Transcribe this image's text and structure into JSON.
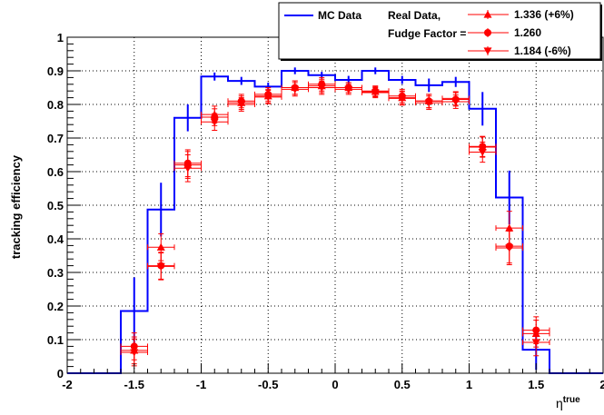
{
  "chart_data": {
    "type": "step-line-with-error-markers",
    "title": "",
    "xlabel_base": "η",
    "xlabel_sup": "true",
    "ylabel": "tracking efficiency",
    "xlim": [
      -2,
      2
    ],
    "ylim": [
      0,
      1
    ],
    "grid": true,
    "x_ticks": [
      "-2",
      "-1.5",
      "-1",
      "-0.5",
      "0",
      "0.5",
      "1",
      "1.5",
      "2"
    ],
    "y_ticks": [
      "0",
      "0.1",
      "0.2",
      "0.3",
      "0.4",
      "0.5",
      "0.6",
      "0.7",
      "0.8",
      "0.9",
      "1"
    ],
    "legend": {
      "position": "top-right",
      "mc_label": "MC Data",
      "real_label": "Real Data,",
      "fudge_label": "Fudge Factor =",
      "up_label": "1.336 (+6%)",
      "nominal_label": "1.260",
      "down_label": "1.184 (-6%)"
    },
    "colors": {
      "mc": "#0000ff",
      "real": "#ff0000"
    },
    "mc_data": {
      "name": "MC Data",
      "bin_edges": [
        -2.0,
        -1.6,
        -1.4,
        -1.2,
        -1.0,
        -0.8,
        -0.6,
        -0.4,
        -0.2,
        0.0,
        0.2,
        0.4,
        0.6,
        0.8,
        1.0,
        1.2,
        1.4,
        1.6,
        2.0
      ],
      "values": [
        0.0,
        0.185,
        0.487,
        0.76,
        0.883,
        0.87,
        0.853,
        0.9,
        0.887,
        0.873,
        0.9,
        0.873,
        0.857,
        0.867,
        0.787,
        0.523,
        0.07,
        0.0
      ],
      "errors": [
        0.0,
        0.1,
        0.08,
        0.04,
        0.012,
        0.012,
        0.012,
        0.01,
        0.01,
        0.012,
        0.01,
        0.012,
        0.02,
        0.015,
        0.05,
        0.08,
        0.06,
        0.0
      ],
      "error_x": [
        -1.8,
        -1.5,
        -1.3,
        -1.1,
        -0.9,
        -0.7,
        -0.5,
        -0.3,
        -0.1,
        0.1,
        0.3,
        0.5,
        0.7,
        0.9,
        1.1,
        1.3,
        1.5,
        1.8
      ]
    },
    "real_data": {
      "x": [
        -1.5,
        -1.3,
        -1.1,
        -0.9,
        -0.7,
        -0.5,
        -0.3,
        -0.1,
        0.1,
        0.3,
        0.5,
        0.7,
        0.9,
        1.1,
        1.3,
        1.5
      ],
      "x_err": 0.1,
      "nominal": [
        0.08,
        0.32,
        0.625,
        0.762,
        0.81,
        0.83,
        0.85,
        0.86,
        0.85,
        0.84,
        0.825,
        0.81,
        0.815,
        0.675,
        0.378,
        0.128
      ],
      "nominal_err": [
        0.04,
        0.04,
        0.04,
        0.025,
        0.02,
        0.02,
        0.02,
        0.02,
        0.015,
        0.015,
        0.02,
        0.02,
        0.02,
        0.03,
        0.05,
        0.04
      ],
      "up": [
        0.068,
        0.375,
        0.62,
        0.77,
        0.805,
        0.825,
        0.85,
        0.855,
        0.85,
        0.838,
        0.82,
        0.81,
        0.818,
        0.673,
        0.432,
        0.118
      ],
      "down": [
        0.062,
        0.318,
        0.61,
        0.748,
        0.8,
        0.822,
        0.845,
        0.85,
        0.845,
        0.835,
        0.818,
        0.805,
        0.808,
        0.658,
        0.373,
        0.092
      ]
    }
  }
}
